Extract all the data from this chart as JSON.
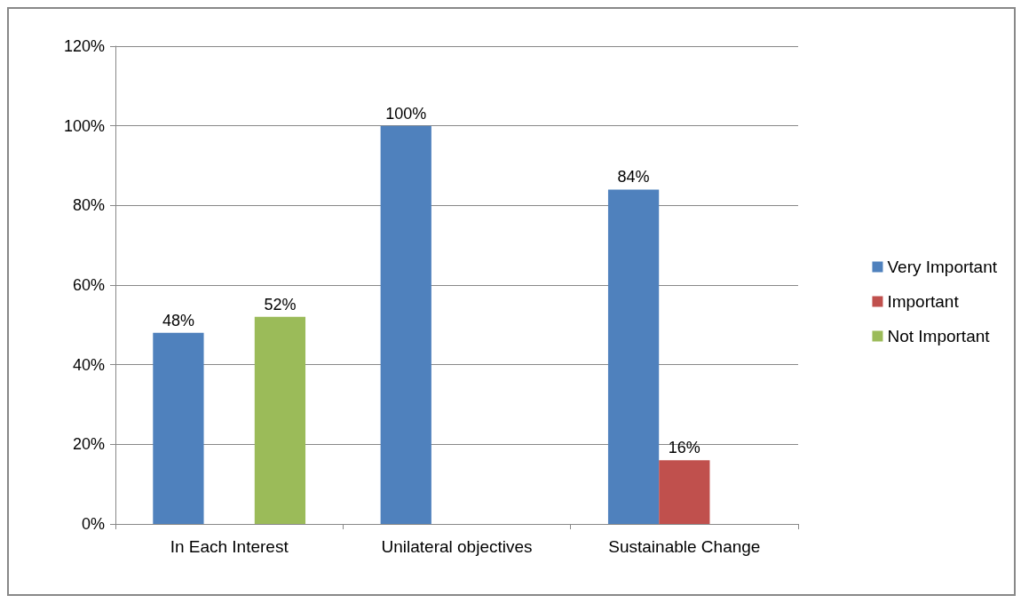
{
  "chart_data": {
    "type": "bar",
    "categories": [
      "In Each Interest",
      "Unilateral objectives",
      "Sustainable Change"
    ],
    "series": [
      {
        "name": "Very Important",
        "color": "#4f81bd",
        "values": [
          48,
          100,
          84
        ],
        "value_labels": [
          "48%",
          "100%",
          "84%"
        ]
      },
      {
        "name": "Important",
        "color": "#c0504d",
        "values": [
          null,
          null,
          16
        ],
        "value_labels": [
          null,
          null,
          "16%"
        ]
      },
      {
        "name": "Not Important",
        "color": "#9bbb59",
        "values": [
          52,
          null,
          null
        ],
        "value_labels": [
          "52%",
          null,
          null
        ]
      }
    ],
    "ylim": [
      0,
      120
    ],
    "yticks": [
      {
        "value": 0,
        "label": "0%"
      },
      {
        "value": 20,
        "label": "20%"
      },
      {
        "value": 40,
        "label": "40%"
      },
      {
        "value": 60,
        "label": "60%"
      },
      {
        "value": 80,
        "label": "80%"
      },
      {
        "value": 100,
        "label": "100%"
      },
      {
        "value": 120,
        "label": "120%"
      }
    ],
    "grid": "y",
    "legend": "right"
  }
}
